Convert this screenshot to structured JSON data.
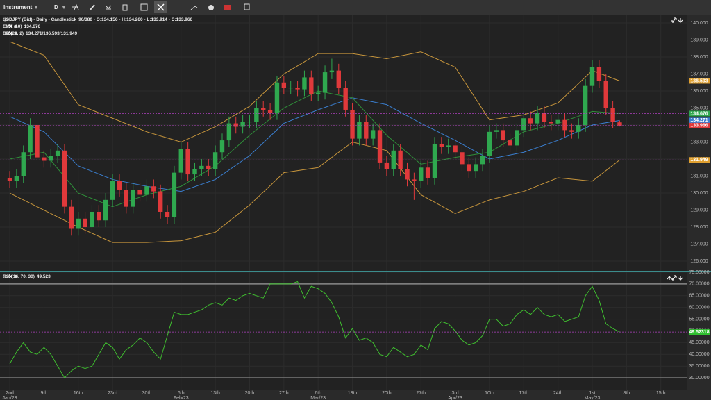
{
  "toolbar": {
    "instrument": "Instrument",
    "period": "D"
  },
  "chart_data": [
    {
      "type": "candlestick",
      "title": "USDJPY (Bid) - Daily - Candlestick",
      "subtitle": "90/380 - O:134.156 - H:134.260 - L:133.914 - C:133.966",
      "indicators": [
        {
          "name": "EMA (10)",
          "value_text": "134.676"
        },
        {
          "name": "BB (20, 2)",
          "value_text": "134.271/136.593/131.949"
        }
      ],
      "up_color": "#2fa84f",
      "down_color": "#e0393b",
      "open": [
        130.9,
        130.7,
        131.0,
        132.4,
        134.0,
        132.1,
        131.9,
        132.2,
        132.5,
        129.2,
        127.9,
        128.5,
        128.0,
        128.9,
        128.4,
        129.6,
        130.7,
        130.2,
        129.2,
        130.2,
        129.9,
        130.4,
        130.1,
        128.9,
        128.6,
        131.2,
        132.6,
        131.1,
        131.4,
        131.6,
        131.4,
        132.4,
        133.1,
        134.1,
        133.9,
        134.2,
        134.2,
        135.0,
        134.9,
        134.7,
        136.5,
        136.2,
        136.2,
        136.1,
        136.8,
        135.8,
        135.9,
        137.1,
        137.2,
        136.2,
        134.9,
        133.2,
        134.2,
        133.2,
        133.7,
        131.8,
        131.4,
        132.5,
        131.4,
        130.8,
        130.7,
        131.5,
        130.9,
        132.9,
        132.7,
        132.8,
        132.4,
        131.7,
        131.3,
        131.7,
        132.2,
        133.6,
        133.7,
        133.1,
        132.8,
        133.7,
        134.4,
        134.1,
        134.7,
        134.2,
        134.1,
        134.3,
        133.7,
        133.6,
        134.0,
        136.3,
        137.4,
        136.6,
        135.0,
        134.156
      ],
      "high": [
        131.3,
        131.4,
        132.8,
        134.4,
        134.4,
        132.5,
        132.6,
        132.9,
        132.9,
        129.6,
        128.9,
        128.9,
        129.3,
        129.3,
        130.0,
        131.1,
        131.1,
        130.6,
        130.6,
        130.6,
        130.8,
        130.8,
        130.5,
        129.3,
        131.6,
        133.0,
        133.0,
        131.8,
        132.0,
        132.0,
        132.8,
        133.5,
        134.5,
        134.5,
        134.6,
        134.6,
        135.4,
        135.4,
        135.3,
        136.9,
        136.9,
        136.6,
        136.6,
        137.2,
        137.2,
        136.3,
        137.5,
        137.9,
        137.6,
        136.6,
        135.3,
        134.6,
        134.6,
        134.1,
        134.1,
        132.2,
        132.9,
        132.9,
        131.8,
        131.2,
        131.9,
        131.9,
        133.3,
        133.3,
        133.2,
        133.2,
        132.8,
        132.1,
        132.1,
        132.6,
        134.0,
        134.1,
        134.1,
        133.5,
        134.1,
        134.8,
        134.8,
        135.1,
        135.1,
        134.6,
        134.7,
        134.7,
        134.1,
        134.4,
        136.7,
        137.8,
        137.8,
        137.0,
        135.4,
        134.26
      ],
      "low": [
        130.3,
        130.3,
        130.6,
        132.0,
        131.7,
        131.5,
        131.5,
        131.8,
        128.8,
        127.5,
        127.5,
        127.6,
        127.6,
        128.0,
        128.0,
        129.2,
        129.8,
        128.8,
        128.8,
        129.5,
        129.5,
        129.7,
        128.5,
        128.2,
        128.2,
        130.8,
        130.7,
        130.7,
        131.0,
        131.0,
        131.0,
        132.0,
        132.7,
        133.5,
        133.5,
        133.8,
        133.8,
        134.5,
        134.3,
        134.3,
        135.8,
        135.8,
        135.7,
        135.7,
        135.4,
        135.4,
        135.5,
        136.7,
        135.8,
        134.5,
        132.8,
        132.8,
        132.8,
        132.8,
        131.4,
        131.0,
        131.0,
        131.0,
        130.4,
        129.6,
        130.3,
        130.5,
        130.5,
        132.3,
        132.3,
        132.0,
        131.3,
        130.9,
        130.9,
        131.3,
        131.8,
        133.2,
        132.7,
        132.4,
        132.4,
        133.3,
        133.7,
        133.7,
        133.8,
        133.7,
        133.7,
        133.3,
        133.2,
        133.2,
        133.6,
        135.9,
        136.2,
        134.6,
        133.8,
        133.914
      ],
      "close": [
        130.7,
        131.0,
        132.4,
        134.0,
        132.1,
        131.9,
        132.2,
        132.5,
        129.2,
        127.9,
        128.5,
        128.0,
        128.9,
        128.4,
        129.6,
        130.7,
        130.2,
        129.2,
        130.2,
        129.9,
        130.4,
        130.1,
        128.9,
        128.6,
        131.2,
        132.6,
        131.1,
        131.4,
        131.6,
        131.4,
        132.4,
        133.1,
        134.1,
        133.9,
        134.2,
        134.2,
        135.0,
        134.9,
        134.7,
        136.5,
        136.2,
        136.2,
        136.1,
        136.8,
        135.8,
        135.9,
        137.1,
        137.2,
        136.2,
        134.9,
        133.2,
        134.2,
        133.2,
        133.7,
        131.8,
        131.4,
        132.5,
        131.4,
        130.8,
        130.7,
        131.5,
        130.9,
        132.9,
        132.7,
        132.8,
        132.4,
        131.7,
        131.3,
        131.7,
        132.2,
        133.6,
        133.7,
        133.1,
        132.8,
        133.7,
        134.4,
        134.1,
        134.7,
        134.2,
        134.1,
        134.3,
        133.7,
        133.6,
        134.0,
        136.3,
        137.4,
        136.6,
        135.0,
        134.2,
        133.966
      ],
      "series": [
        {
          "color": "#c8963c",
          "x": [
            0,
            5,
            10,
            15,
            20,
            25,
            30,
            35,
            40,
            45,
            50,
            55,
            60,
            65,
            70,
            75,
            80,
            85,
            89
          ],
          "values": [
            138.9,
            138.1,
            135.2,
            134.4,
            133.6,
            133.0,
            133.9,
            135.1,
            137.0,
            138.2,
            138.2,
            137.9,
            138.3,
            137.4,
            134.3,
            134.6,
            135.3,
            137.2,
            136.593
          ]
        },
        {
          "color": "#c8963c",
          "x": [
            0,
            5,
            10,
            15,
            20,
            25,
            30,
            35,
            40,
            45,
            50,
            55,
            60,
            65,
            70,
            75,
            80,
            85,
            89
          ],
          "values": [
            130.0,
            129.0,
            128.0,
            127.1,
            127.1,
            127.2,
            127.7,
            129.3,
            131.2,
            131.5,
            133.0,
            132.5,
            129.9,
            128.8,
            129.6,
            130.1,
            130.9,
            130.7,
            131.949
          ]
        },
        {
          "color": "#3b7fd0",
          "x": [
            0,
            5,
            10,
            15,
            20,
            25,
            30,
            35,
            40,
            45,
            50,
            55,
            60,
            65,
            70,
            75,
            80,
            85,
            89
          ],
          "values": [
            134.5,
            133.6,
            131.6,
            130.8,
            130.4,
            130.1,
            130.8,
            132.2,
            134.1,
            134.9,
            135.6,
            135.2,
            134.1,
            133.1,
            132.0,
            132.4,
            133.1,
            134.0,
            134.271
          ]
        },
        {
          "color": "#2f8f3a",
          "x": [
            0,
            5,
            10,
            15,
            20,
            25,
            30,
            35,
            40,
            45,
            50,
            55,
            60,
            65,
            70,
            75,
            80,
            85,
            89
          ],
          "values": [
            132.0,
            132.4,
            130.0,
            129.2,
            129.9,
            130.4,
            131.6,
            133.4,
            135.0,
            136.0,
            135.6,
            133.4,
            131.7,
            132.1,
            132.4,
            133.6,
            134.1,
            134.8,
            134.676
          ]
        }
      ],
      "markers": [
        {
          "value": 136.593,
          "color": "#e0a030",
          "dashed": true
        },
        {
          "value": 134.676,
          "color": "#2fa84f",
          "dashed": true
        },
        {
          "value": 134.271,
          "color": "#3b7fd0",
          "dashed": false
        },
        {
          "value": 133.966,
          "color": "#e0393b",
          "dashed": true
        },
        {
          "value": 131.949,
          "color": "#e0a030",
          "dashed": true
        }
      ],
      "xlim": [
        -1.42,
        98.88
      ],
      "ylim": [
        125.43,
        140.45
      ],
      "yticks": [
        {
          "value": 140,
          "label": "140.000"
        },
        {
          "value": 139,
          "label": "139.000"
        },
        {
          "value": 138,
          "label": "138.000"
        },
        {
          "value": 137,
          "label": "137.000"
        },
        {
          "value": 136,
          "label": "136.000"
        },
        {
          "value": 135,
          "label": "135.000"
        },
        {
          "value": 134,
          "label": "134.000"
        },
        {
          "value": 133,
          "label": "133.000"
        },
        {
          "value": 132,
          "label": "132.000"
        },
        {
          "value": 131,
          "label": "131.000"
        },
        {
          "value": 130,
          "label": "130.000"
        },
        {
          "value": 129,
          "label": "129.000"
        },
        {
          "value": 128,
          "label": "128.000"
        },
        {
          "value": 127,
          "label": "127.000"
        },
        {
          "value": 126,
          "label": "126.000"
        }
      ],
      "xticks": [
        {
          "value": 0,
          "label": "2nd",
          "sublabel": "Jan/23"
        },
        {
          "value": 5,
          "label": "9th"
        },
        {
          "value": 10,
          "label": "16th"
        },
        {
          "value": 15,
          "label": "23rd"
        },
        {
          "value": 20,
          "label": "30th"
        },
        {
          "value": 25,
          "label": "6th",
          "sublabel": "Feb/23"
        },
        {
          "value": 30,
          "label": "13th"
        },
        {
          "value": 35,
          "label": "20th"
        },
        {
          "value": 40,
          "label": "27th"
        },
        {
          "value": 45,
          "label": "6th",
          "sublabel": "Mar/23"
        },
        {
          "value": 50,
          "label": "13th"
        },
        {
          "value": 55,
          "label": "20th"
        },
        {
          "value": 60,
          "label": "27th"
        },
        {
          "value": 65,
          "label": "3rd",
          "sublabel": "Apr/23"
        },
        {
          "value": 70,
          "label": "10th"
        },
        {
          "value": 75,
          "label": "17th"
        },
        {
          "value": 80,
          "label": "24th"
        },
        {
          "value": 85,
          "label": "1st",
          "sublabel": "May/23"
        },
        {
          "value": 90,
          "label": "8th"
        },
        {
          "value": 95,
          "label": "15th"
        }
      ],
      "grid": true
    },
    {
      "type": "line",
      "title": "RSI (14, 70, 30)",
      "subtitle": "49.523",
      "series": [
        {
          "color": "#3fbf2f",
          "values": [
            36,
            41,
            45,
            41,
            40,
            43,
            40,
            35,
            30,
            33,
            35,
            34,
            35,
            40,
            45,
            43,
            38,
            42,
            44,
            47,
            45,
            41,
            38,
            48,
            58,
            57,
            57,
            58,
            59,
            61,
            62,
            61,
            64,
            63,
            65,
            66,
            65,
            64,
            70,
            70,
            70,
            70,
            71,
            64,
            69,
            68,
            66,
            62,
            56,
            47,
            51,
            46,
            47,
            45,
            40,
            39,
            43,
            41,
            39,
            40,
            44,
            42,
            51,
            54,
            53,
            50,
            46,
            44,
            45,
            48,
            55,
            55,
            52,
            53,
            57,
            59,
            57,
            60,
            57,
            56,
            57,
            54,
            55,
            56,
            65,
            69,
            63,
            53,
            51,
            49.523
          ]
        }
      ],
      "levels": [
        70,
        30
      ],
      "markers": [
        {
          "value": 49.52318,
          "color": "#2fbf2f",
          "dashed": true
        }
      ],
      "xlim": [
        -1.42,
        98.88
      ],
      "ylim": [
        25,
        75
      ],
      "yticks": [
        {
          "value": 75,
          "label": "75.00000"
        },
        {
          "value": 70,
          "label": "70.00000"
        },
        {
          "value": 65,
          "label": "65.00000"
        },
        {
          "value": 60,
          "label": "60.00000"
        },
        {
          "value": 55,
          "label": "55.00000"
        },
        {
          "value": 50,
          "label": "50.00000"
        },
        {
          "value": 45,
          "label": "45.00000"
        },
        {
          "value": 40,
          "label": "40.00000"
        },
        {
          "value": 35,
          "label": "35.00000"
        },
        {
          "value": 30,
          "label": "30.00000"
        }
      ],
      "grid": true
    }
  ]
}
